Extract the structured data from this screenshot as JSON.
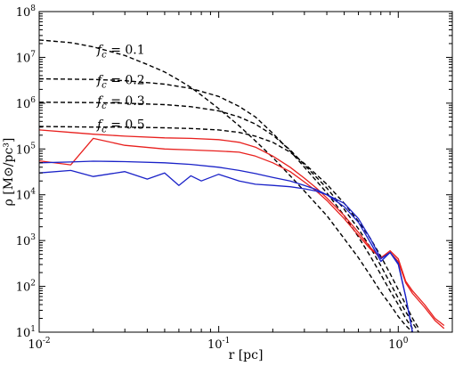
{
  "chart_data": {
    "type": "line",
    "title": "",
    "xlabel": "r [pc]",
    "ylabel": "ρ [M⊙/pc³]",
    "xscale": "log",
    "yscale": "log",
    "xlim": [
      0.01,
      2.0
    ],
    "ylim": [
      10,
      100000000
    ],
    "grid": false,
    "x_ticks": [
      {
        "value": 0.01,
        "label": "10^-2"
      },
      {
        "value": 0.1,
        "label": "10^-1"
      },
      {
        "value": 1,
        "label": "10^0"
      }
    ],
    "y_ticks": [
      {
        "value": 10,
        "label": "10^1"
      },
      {
        "value": 100,
        "label": "10^2"
      },
      {
        "value": 1000,
        "label": "10^3"
      },
      {
        "value": 10000,
        "label": "10^4"
      },
      {
        "value": 100000,
        "label": "10^5"
      },
      {
        "value": 1000000,
        "label": "10^6"
      },
      {
        "value": 10000000,
        "label": "10^7"
      },
      {
        "value": 100000000,
        "label": "10^8"
      }
    ],
    "annotations": [
      {
        "text_var": "f",
        "text_sub": "c",
        "text_rest": " = 0.1",
        "x": 0.021,
        "y": 12000000
      },
      {
        "text_var": "f",
        "text_sub": "c",
        "text_rest": " = 0.2",
        "x": 0.021,
        "y": 2600000
      },
      {
        "text_var": "f",
        "text_sub": "c",
        "text_rest": " = 0.3",
        "x": 0.021,
        "y": 900000
      },
      {
        "text_var": "f",
        "text_sub": "c",
        "text_rest": " = 0.5",
        "x": 0.021,
        "y": 280000
      }
    ],
    "series": [
      {
        "style": "dashed",
        "color": "#000000",
        "x": [
          0.01,
          0.015,
          0.02,
          0.03,
          0.04,
          0.05,
          0.06,
          0.07,
          0.08,
          0.1,
          0.13,
          0.16,
          0.2,
          0.25,
          0.3,
          0.4,
          0.5,
          0.6,
          0.7,
          0.8,
          0.9,
          1.0,
          1.1,
          1.2
        ],
        "y": [
          24000000,
          21000000,
          17000000,
          11000000,
          7000000,
          4800000,
          3200000,
          2200000,
          1500000,
          760000,
          320000,
          150000,
          65000,
          26000,
          12000,
          3500,
          1100,
          420,
          170,
          75,
          40,
          22,
          14,
          10
        ]
      },
      {
        "style": "dashed",
        "color": "#000000",
        "x": [
          0.01,
          0.02,
          0.03,
          0.05,
          0.07,
          0.1,
          0.13,
          0.16,
          0.2,
          0.25,
          0.3,
          0.4,
          0.5,
          0.6,
          0.7,
          0.8,
          0.9,
          1.0,
          1.1,
          1.2
        ],
        "y": [
          3400000,
          3300000,
          3100000,
          2600000,
          2100000,
          1400000,
          850000,
          500000,
          220000,
          90000,
          40000,
          11000,
          3500,
          1200,
          450,
          180,
          80,
          40,
          20,
          12
        ]
      },
      {
        "style": "dashed",
        "color": "#000000",
        "x": [
          0.01,
          0.02,
          0.03,
          0.05,
          0.07,
          0.1,
          0.13,
          0.16,
          0.2,
          0.25,
          0.3,
          0.4,
          0.5,
          0.6,
          0.7,
          0.8,
          0.9,
          1.0,
          1.1,
          1.2,
          1.3
        ],
        "y": [
          1050000,
          1030000,
          1000000,
          930000,
          840000,
          680000,
          500000,
          350000,
          200000,
          95000,
          45000,
          14000,
          4800,
          1800,
          700,
          280,
          120,
          55,
          28,
          16,
          10
        ]
      },
      {
        "style": "dashed",
        "color": "#000000",
        "x": [
          0.01,
          0.02,
          0.03,
          0.05,
          0.07,
          0.1,
          0.13,
          0.16,
          0.2,
          0.25,
          0.3,
          0.4,
          0.5,
          0.6,
          0.7,
          0.8,
          0.9,
          1.0,
          1.1,
          1.2,
          1.3
        ],
        "y": [
          310000,
          300000,
          300000,
          290000,
          280000,
          260000,
          230000,
          190000,
          140000,
          85000,
          48000,
          17000,
          6500,
          2600,
          1100,
          450,
          190,
          85,
          40,
          20,
          12
        ]
      },
      {
        "style": "solid",
        "color": "#e8201e",
        "x": [
          0.01,
          0.015,
          0.02,
          0.03,
          0.05,
          0.07,
          0.1,
          0.13,
          0.16,
          0.2,
          0.25,
          0.3,
          0.35,
          0.4,
          0.5,
          0.6,
          0.7,
          0.8,
          0.9,
          1.0,
          1.1,
          1.2,
          1.4,
          1.6,
          1.8
        ],
        "y": [
          260000,
          230000,
          210000,
          190000,
          175000,
          170000,
          160000,
          140000,
          110000,
          70000,
          40000,
          23000,
          14000,
          8500,
          3500,
          1500,
          700,
          420,
          600,
          400,
          130,
          80,
          40,
          20,
          14
        ]
      },
      {
        "style": "solid",
        "color": "#e8201e",
        "x": [
          0.01,
          0.015,
          0.02,
          0.03,
          0.05,
          0.07,
          0.1,
          0.13,
          0.16,
          0.2,
          0.25,
          0.3,
          0.35,
          0.4,
          0.5,
          0.6,
          0.7,
          0.8,
          0.9,
          1.0,
          1.1,
          1.2,
          1.4,
          1.6,
          1.8
        ],
        "y": [
          55000,
          45000,
          170000,
          120000,
          100000,
          95000,
          90000,
          85000,
          70000,
          50000,
          32000,
          19000,
          12000,
          7500,
          3000,
          1300,
          650,
          420,
          550,
          350,
          120,
          70,
          35,
          18,
          12
        ]
      },
      {
        "style": "solid",
        "color": "#1a22c8",
        "x": [
          0.01,
          0.015,
          0.02,
          0.03,
          0.05,
          0.07,
          0.1,
          0.13,
          0.16,
          0.2,
          0.25,
          0.3,
          0.35,
          0.4,
          0.5,
          0.6,
          0.7,
          0.8,
          0.9,
          1.0,
          1.1,
          1.2
        ],
        "y": [
          50000,
          52000,
          54000,
          53000,
          50000,
          46000,
          40000,
          34000,
          29000,
          24000,
          20000,
          16000,
          13000,
          10000,
          5500,
          2500,
          900,
          350,
          550,
          300,
          60,
          10
        ]
      },
      {
        "style": "solid",
        "color": "#1a22c8",
        "x": [
          0.01,
          0.015,
          0.02,
          0.03,
          0.04,
          0.05,
          0.06,
          0.07,
          0.08,
          0.1,
          0.13,
          0.16,
          0.2,
          0.25,
          0.3,
          0.35,
          0.4,
          0.5,
          0.6,
          0.7,
          0.8,
          0.9,
          1.0,
          1.1,
          1.2
        ],
        "y": [
          30000,
          34000,
          25000,
          32000,
          22000,
          30000,
          16000,
          26000,
          20000,
          28000,
          20000,
          17000,
          16000,
          15000,
          13500,
          12000,
          10000,
          6500,
          3000,
          1100,
          400,
          550,
          320,
          60,
          10
        ]
      }
    ]
  }
}
